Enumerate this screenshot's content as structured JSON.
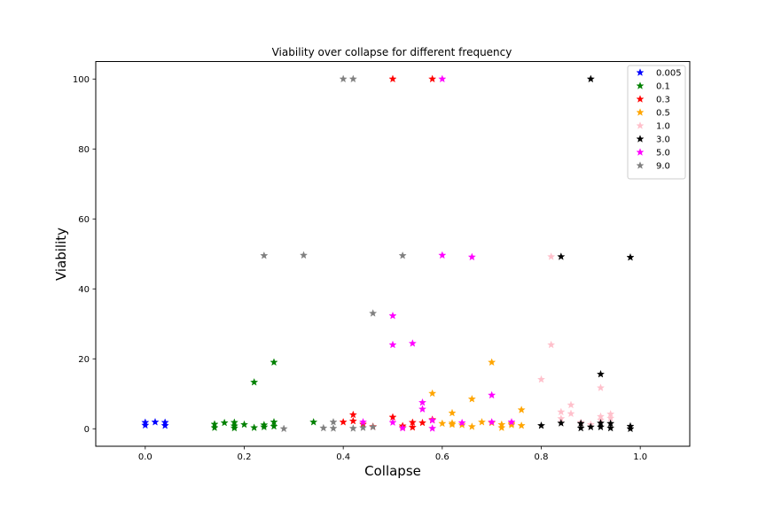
{
  "chart_data": {
    "type": "scatter",
    "title": "Viability over collapse for different frequency",
    "xlabel": "Collapse",
    "ylabel": "Viability",
    "xlim": [
      -0.1,
      1.1
    ],
    "ylim": [
      -5,
      105
    ],
    "xticks": [
      "0.0",
      "0.2",
      "0.4",
      "0.6",
      "0.8",
      "1.0"
    ],
    "xtick_values": [
      0.0,
      0.2,
      0.4,
      0.6,
      0.8,
      1.0
    ],
    "yticks": [
      "0",
      "20",
      "40",
      "60",
      "80",
      "100"
    ],
    "ytick_values": [
      0,
      20,
      40,
      60,
      80,
      100
    ],
    "grid": false,
    "legend_position": "top-right",
    "marker": "star",
    "series": [
      {
        "name": "0.005",
        "color": "#0000ff",
        "points": [
          [
            0.0,
            1.8
          ],
          [
            0.0,
            1.0
          ],
          [
            0.02,
            1.9
          ],
          [
            0.04,
            1.8
          ],
          [
            0.04,
            0.9
          ]
        ]
      },
      {
        "name": "0.1",
        "color": "#008000",
        "points": [
          [
            0.14,
            1.3
          ],
          [
            0.14,
            0.3
          ],
          [
            0.16,
            1.7
          ],
          [
            0.18,
            1.8
          ],
          [
            0.18,
            0.8
          ],
          [
            0.18,
            0.2
          ],
          [
            0.2,
            1.2
          ],
          [
            0.22,
            0.3
          ],
          [
            0.22,
            13.3
          ],
          [
            0.24,
            1.1
          ],
          [
            0.24,
            0.5
          ],
          [
            0.26,
            1.9
          ],
          [
            0.26,
            0.7
          ],
          [
            0.26,
            19.0
          ],
          [
            0.34,
            1.9
          ]
        ]
      },
      {
        "name": "0.3",
        "color": "#ff0000",
        "points": [
          [
            0.4,
            1.9
          ],
          [
            0.42,
            2.2
          ],
          [
            0.42,
            4.0
          ],
          [
            0.44,
            1.3
          ],
          [
            0.46,
            0.6
          ],
          [
            0.5,
            3.3
          ],
          [
            0.5,
            100.0
          ],
          [
            0.52,
            0.3
          ],
          [
            0.52,
            0.8
          ],
          [
            0.54,
            1.8
          ],
          [
            0.54,
            0.4
          ],
          [
            0.56,
            1.7
          ],
          [
            0.58,
            2.6
          ],
          [
            0.58,
            100.0
          ]
        ]
      },
      {
        "name": "0.5",
        "color": "#ffa500",
        "points": [
          [
            0.58,
            10.1
          ],
          [
            0.6,
            1.5
          ],
          [
            0.62,
            1.6
          ],
          [
            0.62,
            1.2
          ],
          [
            0.62,
            4.5
          ],
          [
            0.64,
            1.1
          ],
          [
            0.66,
            8.5
          ],
          [
            0.66,
            0.6
          ],
          [
            0.68,
            1.9
          ],
          [
            0.7,
            19.0
          ],
          [
            0.7,
            1.7
          ],
          [
            0.72,
            0.3
          ],
          [
            0.72,
            1.2
          ],
          [
            0.74,
            1.1
          ],
          [
            0.74,
            1.5
          ],
          [
            0.76,
            5.4
          ],
          [
            0.76,
            0.9
          ]
        ]
      },
      {
        "name": "1.0",
        "color": "#ffc0cb",
        "points": [
          [
            0.8,
            14.1
          ],
          [
            0.82,
            24.0
          ],
          [
            0.82,
            49.2
          ],
          [
            0.84,
            4.8
          ],
          [
            0.84,
            2.9
          ],
          [
            0.86,
            6.8
          ],
          [
            0.86,
            4.3
          ],
          [
            0.88,
            1.8
          ],
          [
            0.9,
            1.2
          ],
          [
            0.92,
            11.7
          ],
          [
            0.92,
            3.5
          ],
          [
            0.92,
            2.5
          ],
          [
            0.94,
            4.2
          ],
          [
            0.94,
            3.0
          ]
        ]
      },
      {
        "name": "3.0",
        "color": "#000000",
        "points": [
          [
            0.8,
            0.9
          ],
          [
            0.84,
            1.6
          ],
          [
            0.84,
            49.2
          ],
          [
            0.88,
            0.2
          ],
          [
            0.88,
            1.5
          ],
          [
            0.9,
            0.5
          ],
          [
            0.9,
            100.0
          ],
          [
            0.92,
            15.6
          ],
          [
            0.92,
            1.6
          ],
          [
            0.92,
            0.5
          ],
          [
            0.94,
            1.5
          ],
          [
            0.94,
            0.2
          ],
          [
            0.98,
            0.7
          ],
          [
            0.98,
            0.0
          ],
          [
            0.98,
            49.0
          ]
        ]
      },
      {
        "name": "5.0",
        "color": "#ff00ff",
        "points": [
          [
            0.44,
            1.9
          ],
          [
            0.5,
            32.3
          ],
          [
            0.5,
            24.0
          ],
          [
            0.5,
            1.8
          ],
          [
            0.52,
            0.2
          ],
          [
            0.54,
            24.4
          ],
          [
            0.56,
            7.5
          ],
          [
            0.56,
            5.6
          ],
          [
            0.58,
            2.4
          ],
          [
            0.58,
            0.1
          ],
          [
            0.6,
            100.0
          ],
          [
            0.6,
            49.6
          ],
          [
            0.64,
            1.7
          ],
          [
            0.66,
            49.1
          ],
          [
            0.7,
            9.6
          ],
          [
            0.7,
            1.9
          ],
          [
            0.74,
            1.9
          ]
        ]
      },
      {
        "name": "9.0",
        "color": "#808080",
        "points": [
          [
            0.24,
            49.5
          ],
          [
            0.28,
            0.0
          ],
          [
            0.32,
            49.6
          ],
          [
            0.36,
            0.2
          ],
          [
            0.38,
            0.1
          ],
          [
            0.38,
            1.9
          ],
          [
            0.4,
            100.0
          ],
          [
            0.42,
            100.0
          ],
          [
            0.42,
            0.1
          ],
          [
            0.44,
            0.3
          ],
          [
            0.46,
            33.0
          ],
          [
            0.46,
            0.5
          ],
          [
            0.52,
            49.5
          ]
        ]
      }
    ]
  }
}
